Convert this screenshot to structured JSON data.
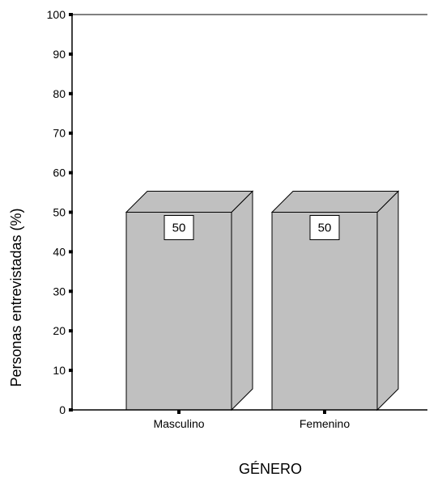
{
  "chart_data": {
    "type": "bar",
    "style": "3d",
    "categories": [
      "Masculino",
      "Femenino"
    ],
    "values": [
      50,
      50
    ],
    "data_labels": [
      "50",
      "50"
    ],
    "xlabel": "GÉNERO",
    "ylabel": "Personas entrevistadas (%)",
    "ylim": [
      0,
      100
    ],
    "yticks": [
      0,
      10,
      20,
      30,
      40,
      50,
      60,
      70,
      80,
      90,
      100
    ],
    "grid": false,
    "legend": "none",
    "colors": {
      "bar_face": "#c0c0c0",
      "bar_side": "#c0c0c0",
      "bar_top": "#c0c0c0",
      "stroke": "#000000",
      "background": "#ffffff"
    }
  }
}
